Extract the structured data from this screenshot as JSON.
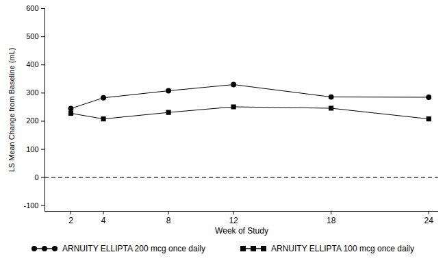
{
  "chart_data": {
    "type": "line",
    "x_label": "Week of Study",
    "y_label": "LS Mean Change from Baseline (mL)",
    "x": [
      2,
      4,
      8,
      12,
      18,
      24
    ],
    "xlim": [
      0.4,
      24.6
    ],
    "xticks": [
      2,
      4,
      8,
      12,
      18,
      24
    ],
    "ylim": [
      -120,
      600
    ],
    "yticks": [
      -100,
      0,
      100,
      200,
      300,
      400,
      500,
      600
    ],
    "grid": false,
    "legend": "bottom",
    "reference_lines": [
      {
        "y": 0,
        "line_style": "dashed"
      }
    ],
    "series": [
      {
        "name": "ARNUITY ELLIPTA 200 mcg once daily",
        "color": "#000000",
        "marker": "circle",
        "line_style": "solid",
        "values": [
          245,
          283,
          308,
          330,
          286,
          285
        ]
      },
      {
        "name": "ARNUITY ELLIPTA 100 mcg once daily",
        "color": "#000000",
        "marker": "square",
        "line_style": "solid",
        "values": [
          228,
          208,
          231,
          251,
          246,
          208
        ]
      }
    ]
  }
}
